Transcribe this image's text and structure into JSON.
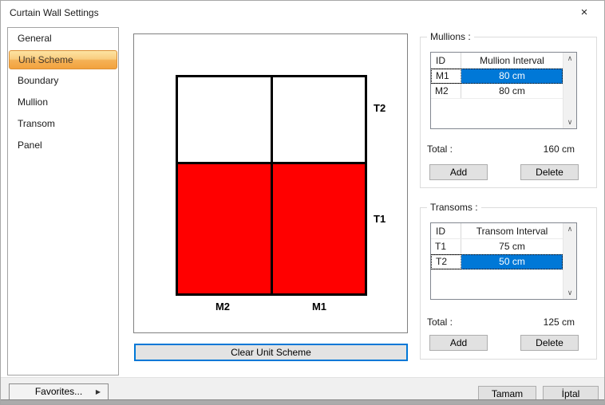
{
  "window": {
    "title": "Curtain Wall Settings"
  },
  "icons": {
    "close": "×",
    "menu_arrow": "▶",
    "scroll_up": "∧",
    "scroll_down": "∨"
  },
  "sidebar": {
    "selected": "Unit Scheme",
    "items": [
      {
        "label": "General"
      },
      {
        "label": "Unit Scheme"
      },
      {
        "label": "Boundary"
      },
      {
        "label": "Mullion"
      },
      {
        "label": "Transom"
      },
      {
        "label": "Panel"
      }
    ]
  },
  "preview": {
    "row_labels": {
      "top": "T2",
      "bottom": "T1"
    },
    "col_labels": {
      "left": "M2",
      "right": "M1"
    },
    "cell_colors": {
      "top": "#FFFFFF",
      "bottom": "#FF0000"
    },
    "clear_button": "Clear Unit Scheme"
  },
  "mullions": {
    "group_label": "Mullions :",
    "columns": {
      "id": "ID",
      "interval": "Mullion Interval"
    },
    "rows": [
      {
        "id": "M1",
        "interval": "80 cm",
        "selected": true
      },
      {
        "id": "M2",
        "interval": "80 cm",
        "selected": false
      }
    ],
    "total_label": "Total :",
    "total_value": "160 cm",
    "add": "Add",
    "delete": "Delete"
  },
  "transoms": {
    "group_label": "Transoms :",
    "columns": {
      "id": "ID",
      "interval": "Transom Interval"
    },
    "rows": [
      {
        "id": "T1",
        "interval": "75 cm",
        "selected": false
      },
      {
        "id": "T2",
        "interval": "50 cm",
        "selected": true
      }
    ],
    "total_label": "Total :",
    "total_value": "125 cm",
    "add": "Add",
    "delete": "Delete"
  },
  "footer": {
    "favorites": "Favorites...",
    "ok": "Tamam",
    "cancel": "İptal"
  },
  "colors": {
    "selection_blue": "#0078D7",
    "accent_orange": "#F2A23E",
    "panel_red": "#FF0000"
  }
}
